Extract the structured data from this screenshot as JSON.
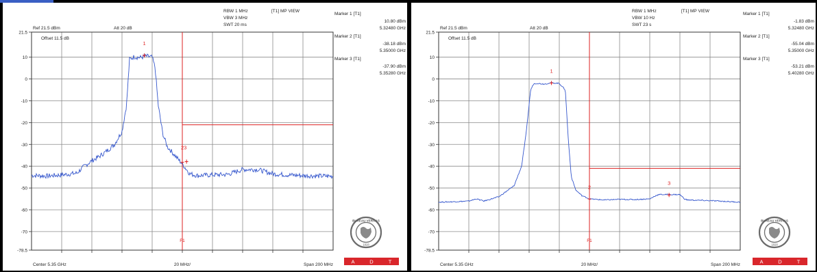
{
  "colors": {
    "background": "#000000",
    "panel": "#ffffff",
    "trace": "#3355cc",
    "limit": "#dd2222",
    "grid": "#8a8a8a",
    "frame": "#333333",
    "text": "#222222",
    "logo_red": "#d9262b"
  },
  "chart_data": [
    {
      "type": "line",
      "header": {
        "ref_level": "Ref 21.5 dBm",
        "att": "Att  20 dB",
        "rbw": "RBW 1 MHz",
        "vbw": "VBW 3 MHz",
        "swt": "SWT 20 ms",
        "view_mode": "[T1] MP VIEW",
        "offset": "Offset 11.5 dB"
      },
      "markers_panel": [
        {
          "title": "Marker 1 [T1]",
          "level": "10.80 dBm",
          "freq": "5.32480 GHz"
        },
        {
          "title": "Marker 2 [T1]",
          "level": "-38.18 dBm",
          "freq": "5.35000 GHz"
        },
        {
          "title": "Marker 3 [T1]",
          "level": "-37.90 dBm",
          "freq": "5.35280 GHz"
        }
      ],
      "footer": {
        "center": "Center 5.35 GHz",
        "div": "20 MHz/",
        "span": "Span 200 MHz"
      },
      "y_ticks": [
        "21.5",
        "10",
        "0",
        "-10",
        "-20",
        "-30",
        "-40",
        "-50",
        "-60",
        "-70",
        "-78.5"
      ],
      "ylim": [
        -78.5,
        21.5
      ],
      "xlim": [
        5.25,
        5.45
      ],
      "x_unit": "GHz",
      "y_unit": "dBm",
      "vline": {
        "x": 5.35,
        "label": "F1"
      },
      "hline": {
        "y": -21,
        "x_from": 5.35
      },
      "series": [
        {
          "x": [
            5.25,
            5.26,
            5.27,
            5.28,
            5.285,
            5.29,
            5.295,
            5.3,
            5.305,
            5.31,
            5.313,
            5.315,
            5.318,
            5.322,
            5.326,
            5.33,
            5.332,
            5.334,
            5.337,
            5.34,
            5.345,
            5.35,
            5.355,
            5.36,
            5.37,
            5.38,
            5.39,
            5.4,
            5.41,
            5.42,
            5.43,
            5.44,
            5.45
          ],
          "values": [
            -44.2,
            -44.5,
            -44,
            -43.2,
            -40,
            -37.5,
            -35.5,
            -33,
            -30,
            -24,
            -12,
            9,
            10.2,
            9.8,
            10.5,
            10,
            5,
            -12,
            -25,
            -31,
            -35,
            -39,
            -43.5,
            -44.3,
            -44,
            -43.8,
            -41.5,
            -41.5,
            -43.5,
            -44,
            -44.3,
            -44.5,
            -44.6
          ]
        }
      ],
      "markers": [
        {
          "label": "1",
          "x": 5.3248,
          "y": 10.8
        },
        {
          "label": "2",
          "x": 5.35,
          "y": -38.18
        },
        {
          "label": "3",
          "x": 5.3528,
          "y": -37.9
        }
      ],
      "marker_callouts": [
        {
          "text": "1",
          "x": 5.3248,
          "y": 15.5
        },
        {
          "text": "23",
          "x": 5.351,
          "y": -32.3
        }
      ]
    },
    {
      "type": "line",
      "header": {
        "ref_level": "Ref 21.5 dBm",
        "att": "Att  20 dB",
        "rbw": "RBW 1 MHz",
        "vbw": "VBW 10 Hz",
        "swt": "SWT 23 s",
        "view_mode": "[T1] MP VIEW",
        "offset": "Offset 11.5 dB"
      },
      "markers_panel": [
        {
          "title": "Marker 1 [T1]",
          "level": "-1.83 dBm",
          "freq": "5.32480 GHz"
        },
        {
          "title": "Marker 2 [T1]",
          "level": "-55.04 dBm",
          "freq": "5.35000 GHz"
        },
        {
          "title": "Marker 3 [T1]",
          "level": "-53.21 dBm",
          "freq": "5.40280 GHz"
        }
      ],
      "footer": {
        "center": "Center 5.35 GHz",
        "div": "20 MHz/",
        "span": "Span 200 MHz"
      },
      "y_ticks": [
        "21.5",
        "10",
        "0",
        "-10",
        "-20",
        "-30",
        "-40",
        "-50",
        "-60",
        "-70",
        "-78.5"
      ],
      "ylim": [
        -78.5,
        21.5
      ],
      "xlim": [
        5.25,
        5.45
      ],
      "x_unit": "GHz",
      "y_unit": "dBm",
      "vline": {
        "x": 5.35,
        "label": "F1"
      },
      "hline": {
        "y": -41,
        "x_from": 5.35
      },
      "series": [
        {
          "x": [
            5.25,
            5.26,
            5.27,
            5.275,
            5.28,
            5.29,
            5.3,
            5.305,
            5.308,
            5.311,
            5.313,
            5.315,
            5.32,
            5.325,
            5.33,
            5.334,
            5.336,
            5.338,
            5.341,
            5.345,
            5.35,
            5.36,
            5.37,
            5.38,
            5.39,
            5.394,
            5.396,
            5.41,
            5.413,
            5.415,
            5.43,
            5.45
          ],
          "values": [
            -56.5,
            -56.3,
            -56,
            -55,
            -56,
            -54,
            -49,
            -40,
            -25,
            -5,
            -2.2,
            -2,
            -2.3,
            -1.8,
            -2,
            -5,
            -28,
            -45,
            -51,
            -53.5,
            -55,
            -55.5,
            -55.2,
            -55.3,
            -55,
            -53.5,
            -53,
            -53,
            -55,
            -55.5,
            -55.8,
            -56.5
          ]
        }
      ],
      "markers": [
        {
          "label": "1",
          "x": 5.3248,
          "y": -1.83
        },
        {
          "label": "2",
          "x": 5.35,
          "y": -55.04
        },
        {
          "label": "3",
          "x": 5.4028,
          "y": -53.21
        }
      ],
      "marker_callouts": [
        {
          "text": "1",
          "x": 5.3248,
          "y": 2.8
        },
        {
          "text": "2",
          "x": 5.35,
          "y": -50.4
        },
        {
          "text": "3",
          "x": 5.4028,
          "y": -48.6
        }
      ]
    }
  ],
  "badge": {
    "logo_text": "BUREAU VERITAS",
    "logo_year": "1828",
    "brand_letters": [
      "A",
      "D",
      "T"
    ]
  }
}
